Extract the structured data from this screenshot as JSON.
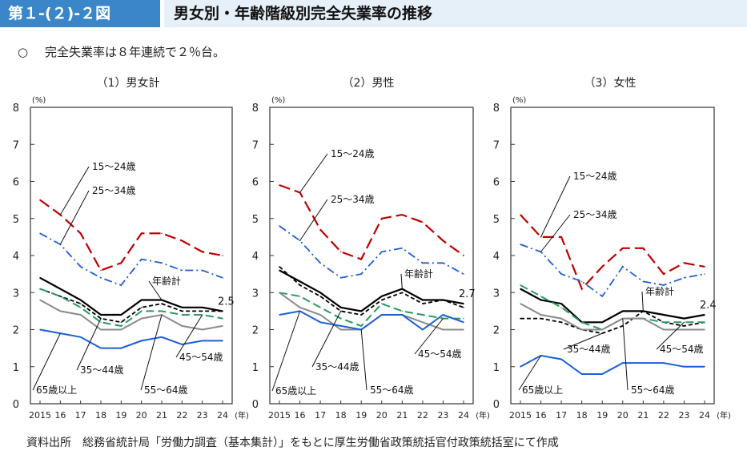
{
  "header": {
    "figure_label": "第１-(２)-２図",
    "title": "男女別・年齢階級別完全失業率の推移"
  },
  "summary": {
    "bullet": "○",
    "text": "完全失業率は８年連続で２％台。"
  },
  "source": "資料出所　総務省統計局「労働力調査（基本集計）」をもとに厚生労働省政策統括官付政策統括室にて作成",
  "colors": {
    "年齢計": "#000000",
    "15～24歳": "#c00000",
    "25～34歳": "#1f5fd0",
    "35～44歳": "#000000",
    "45～54歳": "#2a9a60",
    "55～64歳": "#8a8a8a",
    "65歳以上": "#1a5fd8"
  },
  "chart_data": [
    {
      "type": "line",
      "title": "（1）男女計",
      "ylabel": "(%)",
      "xlabel": "(年)",
      "ylim": [
        0,
        8
      ],
      "yticks": [
        "0",
        "1",
        "2",
        "3",
        "4",
        "5",
        "6",
        "7",
        "8"
      ],
      "categories": [
        "2015",
        "16",
        "17",
        "18",
        "19",
        "20",
        "21",
        "22",
        "23",
        "24"
      ],
      "end_label": "2.5",
      "series": [
        {
          "name": "年齢計",
          "values": [
            3.4,
            3.1,
            2.8,
            2.4,
            2.4,
            2.8,
            2.8,
            2.6,
            2.6,
            2.5
          ]
        },
        {
          "name": "15～24歳",
          "values": [
            5.5,
            5.1,
            4.6,
            3.6,
            3.8,
            4.6,
            4.6,
            4.4,
            4.1,
            4.0
          ]
        },
        {
          "name": "25～34歳",
          "values": [
            4.6,
            4.3,
            3.7,
            3.4,
            3.2,
            3.9,
            3.8,
            3.6,
            3.6,
            3.4
          ]
        },
        {
          "name": "35～44歳",
          "values": [
            3.1,
            2.9,
            2.7,
            2.3,
            2.2,
            2.6,
            2.7,
            2.5,
            2.5,
            2.5
          ]
        },
        {
          "name": "45～54歳",
          "values": [
            3.1,
            2.9,
            2.6,
            2.2,
            2.1,
            2.5,
            2.5,
            2.4,
            2.4,
            2.3
          ]
        },
        {
          "name": "55～64歳",
          "values": [
            2.8,
            2.5,
            2.4,
            2.0,
            2.0,
            2.3,
            2.4,
            2.1,
            2.0,
            2.1
          ]
        },
        {
          "name": "65歳以上",
          "values": [
            2.0,
            1.9,
            1.8,
            1.5,
            1.5,
            1.7,
            1.8,
            1.6,
            1.7,
            1.7
          ]
        }
      ],
      "annotations": [
        "15～24歳",
        "25～34歳",
        "年齢計",
        "35～44歳",
        "45～54歳",
        "55～64歳",
        "65歳以上"
      ]
    },
    {
      "type": "line",
      "title": "（2）男性",
      "ylabel": "(%)",
      "xlabel": "(年)",
      "ylim": [
        0,
        8
      ],
      "yticks": [
        "0",
        "1",
        "2",
        "3",
        "4",
        "5",
        "6",
        "7",
        "8"
      ],
      "categories": [
        "2015",
        "16",
        "17",
        "18",
        "19",
        "20",
        "21",
        "22",
        "23",
        "24"
      ],
      "end_label": "2.7",
      "series": [
        {
          "name": "年齢計",
          "values": [
            3.6,
            3.3,
            3.0,
            2.6,
            2.5,
            2.9,
            3.1,
            2.8,
            2.8,
            2.7
          ]
        },
        {
          "name": "15～24歳",
          "values": [
            5.9,
            5.7,
            4.7,
            4.1,
            3.9,
            5.0,
            5.1,
            4.9,
            4.4,
            4.0
          ]
        },
        {
          "name": "25～34歳",
          "values": [
            4.8,
            4.4,
            3.8,
            3.4,
            3.5,
            4.1,
            4.2,
            3.8,
            3.8,
            3.5
          ]
        },
        {
          "name": "35～44歳",
          "values": [
            3.7,
            3.2,
            2.9,
            2.5,
            2.4,
            2.8,
            3.0,
            2.7,
            2.8,
            2.6
          ]
        },
        {
          "name": "45～54歳",
          "values": [
            3.0,
            2.9,
            2.6,
            2.3,
            2.1,
            2.7,
            2.5,
            2.4,
            2.3,
            2.3
          ]
        },
        {
          "name": "55～64歳",
          "values": [
            3.0,
            2.6,
            2.4,
            2.0,
            2.0,
            2.4,
            2.4,
            2.2,
            2.0,
            2.0
          ]
        },
        {
          "name": "65歳以上",
          "values": [
            2.4,
            2.5,
            2.2,
            2.1,
            2.0,
            2.4,
            2.4,
            2.0,
            2.4,
            2.2
          ]
        }
      ],
      "annotations": [
        "15～24歳",
        "25～34歳",
        "年齢計",
        "35～44歳",
        "45～54歳",
        "55～64歳",
        "65歳以上"
      ]
    },
    {
      "type": "line",
      "title": "（3）女性",
      "ylabel": "(%)",
      "xlabel": "(年)",
      "ylim": [
        0,
        8
      ],
      "yticks": [
        "0",
        "1",
        "2",
        "3",
        "4",
        "5",
        "6",
        "7",
        "8"
      ],
      "categories": [
        "2015",
        "16",
        "17",
        "18",
        "19",
        "20",
        "21",
        "22",
        "23",
        "24"
      ],
      "end_label": "2.4",
      "series": [
        {
          "name": "年齢計",
          "values": [
            3.1,
            2.8,
            2.7,
            2.2,
            2.2,
            2.5,
            2.5,
            2.4,
            2.3,
            2.4
          ]
        },
        {
          "name": "15～24歳",
          "values": [
            5.1,
            4.5,
            4.5,
            3.1,
            3.7,
            4.2,
            4.2,
            3.5,
            3.8,
            3.7
          ]
        },
        {
          "name": "25～34歳",
          "values": [
            4.3,
            4.1,
            3.5,
            3.3,
            2.9,
            3.7,
            3.3,
            3.2,
            3.4,
            3.5
          ]
        },
        {
          "name": "35～44歳",
          "values": [
            2.3,
            2.3,
            2.2,
            2.0,
            1.9,
            2.1,
            2.5,
            2.2,
            2.1,
            2.2
          ]
        },
        {
          "name": "45～54歳",
          "values": [
            3.2,
            2.9,
            2.6,
            2.2,
            2.0,
            2.3,
            2.3,
            2.2,
            2.2,
            2.2
          ]
        },
        {
          "name": "55～64歳",
          "values": [
            2.7,
            2.4,
            2.3,
            2.0,
            2.0,
            2.3,
            2.3,
            2.0,
            2.0,
            2.0
          ]
        },
        {
          "name": "65歳以上",
          "values": [
            1.0,
            1.3,
            1.2,
            0.8,
            0.8,
            1.1,
            1.1,
            1.1,
            1.0,
            1.0
          ]
        }
      ],
      "annotations": [
        "15～24歳",
        "25～34歳",
        "年齢計",
        "35～44歳",
        "45～54歳",
        "55～64歳",
        "65歳以上"
      ]
    }
  ]
}
